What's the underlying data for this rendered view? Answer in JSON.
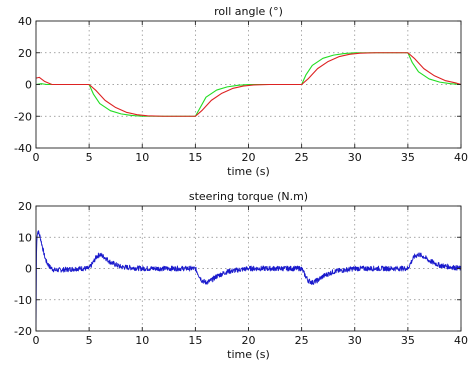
{
  "chart_data": [
    {
      "type": "line",
      "title": "roll angle (°)",
      "xlabel": "time (s)",
      "ylabel": "",
      "xlim": [
        0,
        40
      ],
      "ylim": [
        -40,
        40
      ],
      "xticks": [
        0,
        5,
        10,
        15,
        20,
        25,
        30,
        35,
        40
      ],
      "yticks": [
        -40,
        -20,
        0,
        20,
        40
      ],
      "grid": true,
      "series": [
        {
          "color": "#22dd22",
          "x": [
            0,
            0.5,
            1,
            2,
            3,
            5,
            5.4,
            6,
            7,
            8,
            9,
            10,
            11,
            12,
            15,
            15.5,
            16,
            17,
            18,
            19,
            20,
            22,
            25,
            25.4,
            26,
            27,
            28,
            29,
            30,
            32,
            35,
            35.4,
            36,
            37,
            38,
            39,
            40
          ],
          "y": [
            0,
            0.5,
            0,
            0,
            0,
            0,
            -6,
            -12,
            -16.5,
            -18.5,
            -19.5,
            -20,
            -20,
            -20,
            -20,
            -14,
            -8,
            -3.5,
            -1.5,
            -0.5,
            0,
            0,
            0,
            6,
            12,
            16.5,
            18.5,
            19.5,
            20,
            20,
            20,
            14,
            8,
            3.5,
            1.5,
            0.5,
            0
          ]
        },
        {
          "color": "#dd2222",
          "x": [
            0,
            0.3,
            0.8,
            1.5,
            2.5,
            5,
            5.6,
            6.5,
            7.5,
            8.5,
            9.5,
            10.5,
            12,
            15,
            15.6,
            16.5,
            17.5,
            18.5,
            19.5,
            20.5,
            22,
            25,
            25.6,
            26.5,
            27.5,
            28.5,
            29.5,
            30.5,
            32,
            35,
            35.6,
            36.5,
            37.5,
            38.5,
            39.5,
            40
          ],
          "y": [
            4,
            4.5,
            2,
            0,
            0,
            0,
            -3.5,
            -10,
            -14.5,
            -17.5,
            -19,
            -19.7,
            -20,
            -20,
            -16.5,
            -10,
            -5.5,
            -2.5,
            -1,
            -0.3,
            0,
            0,
            3.5,
            10,
            14.5,
            17.5,
            19,
            19.7,
            20,
            20,
            16.5,
            10,
            5.5,
            2.5,
            1,
            0
          ]
        }
      ]
    },
    {
      "type": "line",
      "title": "steering torque (N.m)",
      "xlabel": "time (s)",
      "ylabel": "",
      "xlim": [
        0,
        40
      ],
      "ylim": [
        -20,
        20
      ],
      "xticks": [
        0,
        5,
        10,
        15,
        20,
        25,
        30,
        35,
        40
      ],
      "yticks": [
        -20,
        -10,
        0,
        10,
        20
      ],
      "grid": true,
      "series": [
        {
          "color": "#1a1acc",
          "x": [
            0,
            0.05,
            0.1,
            0.2,
            0.4,
            0.6,
            0.8,
            1.0,
            1.3,
            1.7,
            2,
            3,
            4,
            5,
            5.3,
            5.7,
            6,
            6.5,
            7,
            8,
            10,
            12,
            15,
            15.3,
            15.6,
            16,
            16.5,
            17,
            18,
            20,
            22,
            25,
            25.3,
            25.6,
            26,
            26.5,
            27,
            28,
            30,
            32,
            35,
            35.3,
            35.6,
            36,
            36.5,
            37,
            38,
            40
          ],
          "y": [
            -20,
            5,
            11,
            12,
            10,
            7,
            4,
            2,
            0.5,
            -0.5,
            -0.5,
            -0.3,
            0,
            0,
            1.5,
            3.8,
            4.5,
            3.5,
            2,
            0.5,
            0,
            0,
            0,
            -2,
            -3.8,
            -4.5,
            -3.8,
            -2.5,
            -1,
            0,
            0,
            0,
            -2,
            -3.8,
            -4.5,
            -3.8,
            -2.5,
            -1,
            0,
            0,
            0,
            2,
            3.8,
            4.5,
            3.8,
            2.5,
            1,
            0
          ]
        }
      ]
    }
  ]
}
